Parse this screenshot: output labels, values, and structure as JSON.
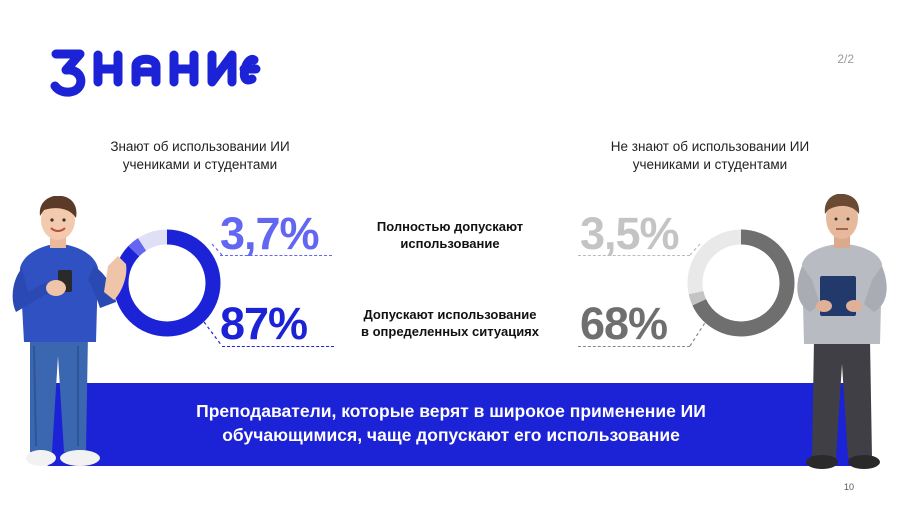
{
  "logo": {
    "text": "ЗНАНИЕ",
    "color": "#1c22d6"
  },
  "page_indicator": "2/2",
  "slide_number": "10",
  "groups": {
    "left": {
      "title_line1": "Знают об использовании ИИ",
      "title_line2": "учениками и студентами"
    },
    "right": {
      "title_line1": "Не знают об использовании ИИ",
      "title_line2": "учениками и студентами"
    }
  },
  "legend": {
    "full": {
      "line1": "Полностью допускают",
      "line2": "использование"
    },
    "partial": {
      "line1": "Допускают использование",
      "line2": "в определенных ситуациях"
    }
  },
  "banner": {
    "line1": "Преподаватели, которые верят в широкое применение ИИ",
    "line2": "обучающимися, чаще допускают его использование"
  },
  "colors": {
    "accent": "#1c22d6",
    "accent_light": "#6366f1",
    "accent_pale": "#dfe0f5",
    "grey_dark": "#6f6f6f",
    "grey_light": "#c4c4c4",
    "grey_pale": "#e9e9e9"
  },
  "chart_data": [
    {
      "type": "pie",
      "group": "Знают об использовании ИИ учениками и студентами",
      "categories": [
        "Полностью допускают использование",
        "Допускают использование в определенных ситуациях"
      ],
      "values": [
        3.7,
        87
      ],
      "labels": [
        "3,7%",
        "87%"
      ],
      "colors": [
        "#6366f1",
        "#1c22d6"
      ]
    },
    {
      "type": "pie",
      "group": "Не знают об использовании ИИ учениками и студентами",
      "categories": [
        "Полностью допускают использование",
        "Допускают использование в определенных ситуациях"
      ],
      "values": [
        3.5,
        68
      ],
      "labels": [
        "3,5%",
        "68%"
      ],
      "colors": [
        "#c4c4c4",
        "#6f6f6f"
      ]
    }
  ]
}
